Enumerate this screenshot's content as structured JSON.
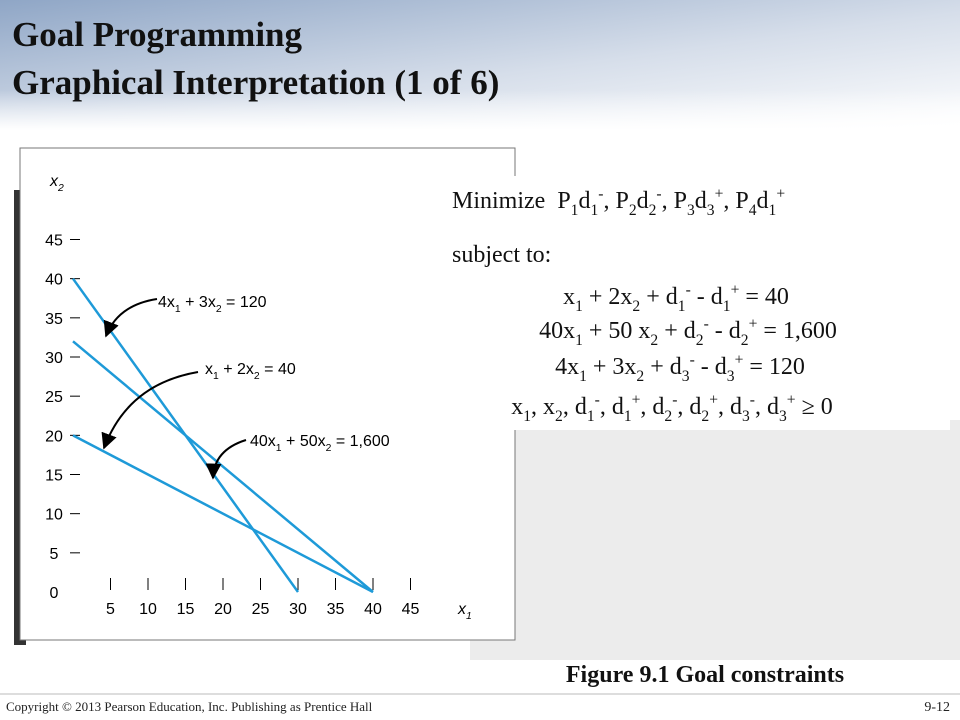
{
  "title": [
    "Goal Programming",
    "Graphical Interpretation (1 of 6)"
  ],
  "chart_data": {
    "type": "line",
    "x_label": "x1",
    "y_label": "x2",
    "xlim": [
      0,
      50
    ],
    "ylim": [
      0,
      48
    ],
    "xticks": [
      5,
      10,
      15,
      20,
      25,
      30,
      35,
      40,
      45
    ],
    "yticks": [
      0,
      5,
      10,
      15,
      20,
      25,
      30,
      35,
      40,
      45
    ],
    "series": [
      {
        "name": "4x1 + 3x2 = 120",
        "color": "#1e9ad8",
        "x": [
          0,
          30
        ],
        "values": [
          40,
          0
        ]
      },
      {
        "name": "x1 + 2x2 = 40",
        "color": "#1e9ad8",
        "x": [
          0,
          40
        ],
        "values": [
          20,
          0
        ]
      },
      {
        "name": "40x1 + 50x2 = 1,600",
        "color": "#1e9ad8",
        "x": [
          0,
          40
        ],
        "values": [
          32,
          0
        ]
      }
    ]
  },
  "formulation": {
    "objective": "Minimize  P1d1-, P2d2-, P3d3+, P4d1+",
    "subject_to": "subject to:",
    "constraints": [
      "x1 + 2x2 + d1- - d1+ = 40",
      "40x1 + 50 x2 + d2- - d2+ = 1,600",
      "4x1 + 3x2 + d3- - d3+ = 120",
      "x1, x2, d1-, d1+, d2-, d2+, d3-, d3+ ≥ 0"
    ]
  },
  "caption": "Figure 9.1 Goal constraints",
  "footer": {
    "copyright": "Copyright © 2013 Pearson Education, Inc. Publishing as Prentice Hall",
    "page": "9-12"
  }
}
